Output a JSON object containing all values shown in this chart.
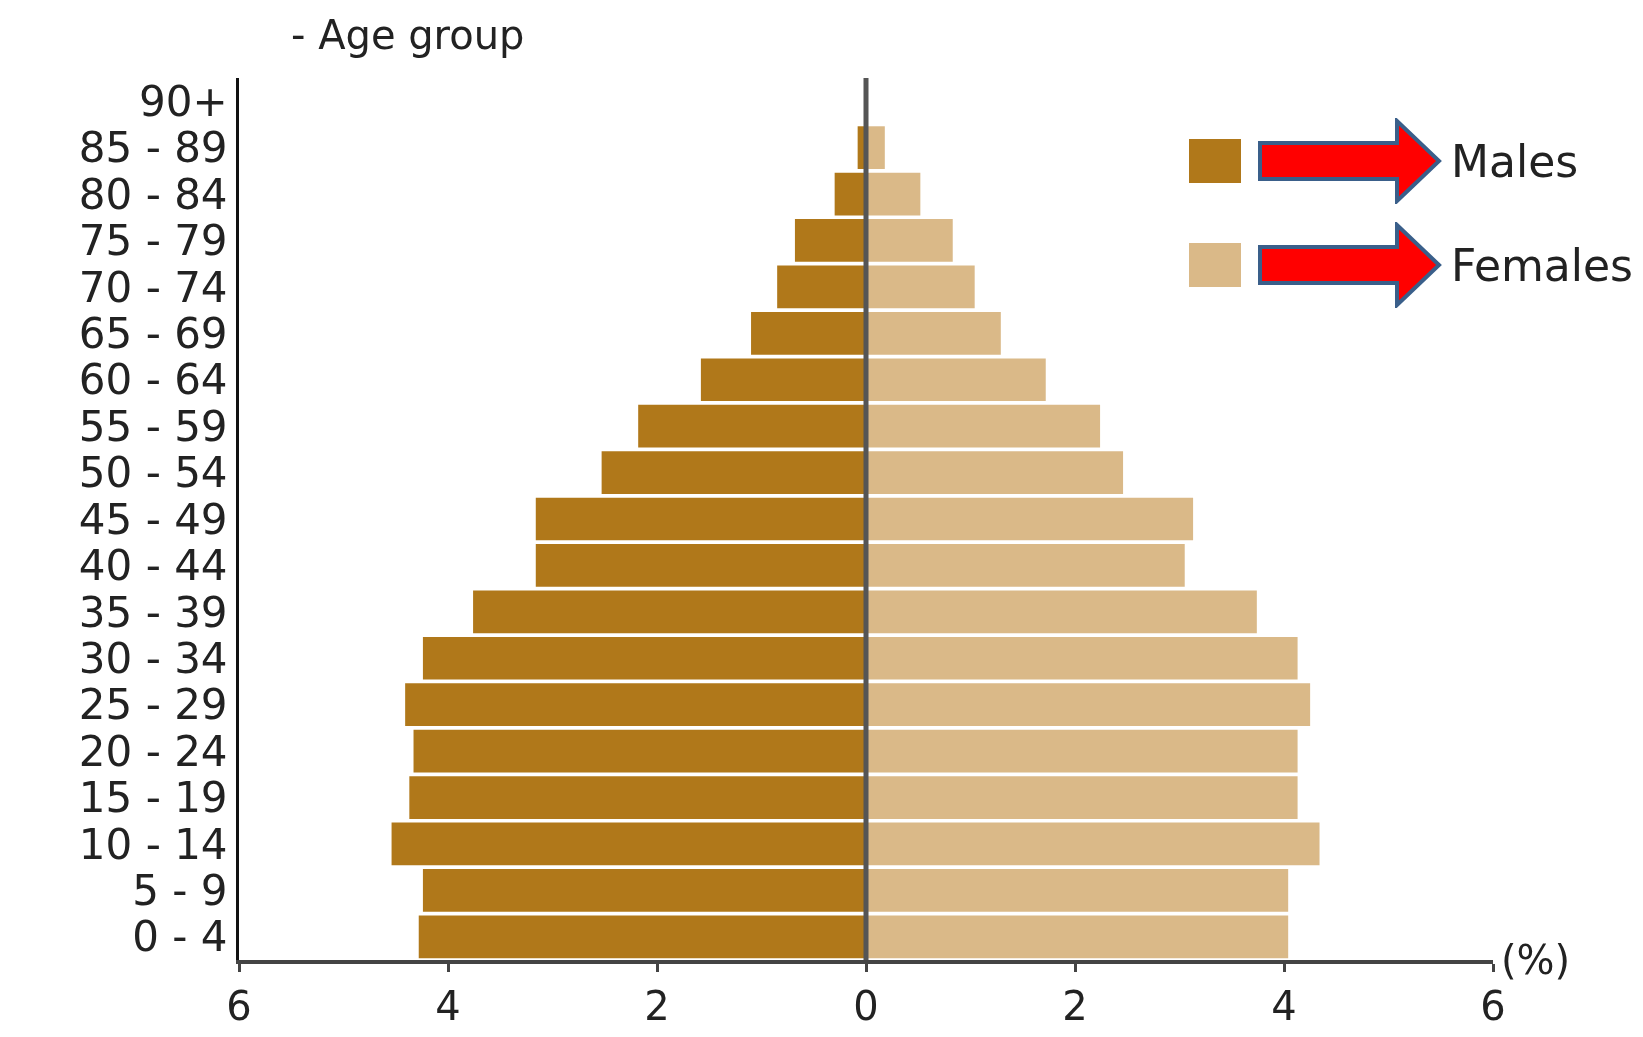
{
  "chart_data": {
    "type": "bar",
    "orientation": "horizontal",
    "ylabel": "- Age group",
    "xlabel": "(%)",
    "categories": [
      "90+",
      "85 - 89",
      "80 - 84",
      "75 - 79",
      "70 - 74",
      "65 - 69",
      "60 - 64",
      "55 - 59",
      "50 - 54",
      "45 - 49",
      "40 - 44",
      "35 - 39",
      "30 - 34",
      "25 - 29",
      "20 - 24",
      "15 - 19",
      "10 - 14",
      "5 - 9",
      "0 - 4"
    ],
    "series": [
      {
        "name": "Males",
        "color": "#b0781a",
        "values": [
          null,
          -0.08,
          -0.3,
          -0.68,
          -0.85,
          -1.1,
          -1.58,
          -2.18,
          -2.53,
          -3.16,
          -3.16,
          -3.76,
          -4.24,
          -4.41,
          -4.33,
          -4.37,
          -4.54,
          -4.24,
          -4.28
        ]
      },
      {
        "name": "Females",
        "color": "#dab988",
        "values": [
          null,
          0.18,
          0.52,
          0.83,
          1.04,
          1.29,
          1.72,
          2.24,
          2.46,
          3.13,
          3.05,
          3.74,
          4.13,
          4.25,
          4.13,
          4.13,
          4.34,
          4.04,
          4.04
        ]
      }
    ],
    "xlim": [
      -6,
      6
    ],
    "xticks": [
      {
        "value": -6,
        "label": "6"
      },
      {
        "value": -4,
        "label": "4"
      },
      {
        "value": -2,
        "label": "2"
      },
      0,
      2,
      4,
      6
    ],
    "ref_lines": [
      {
        "axis": "x",
        "value": 0,
        "color": "#555555"
      }
    ],
    "stacked": true,
    "grid": false,
    "legend": "top right"
  }
}
